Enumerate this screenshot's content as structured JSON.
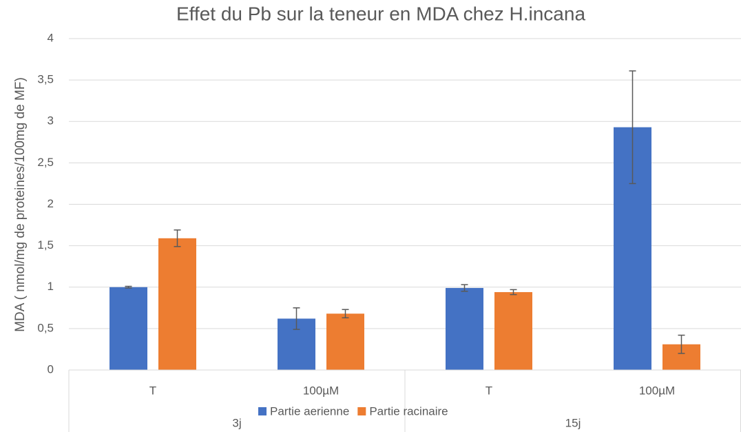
{
  "chart_data": {
    "type": "bar",
    "title": "Effet du Pb sur la teneur en MDA chez H.incana",
    "ylabel": "MDA ( nmol/mg de proteines/100mg de MF)",
    "categories": [
      "T",
      "100µM",
      "T",
      "100µM"
    ],
    "group_labels": [
      "3j",
      "15j"
    ],
    "series": [
      {
        "name": "Partie aerienne",
        "color": "#4472c4",
        "values": [
          1.0,
          0.62,
          0.99,
          2.93
        ],
        "errors": [
          0.01,
          0.13,
          0.04,
          0.68
        ]
      },
      {
        "name": "Partie racinaire",
        "color": "#ed7d31",
        "values": [
          1.59,
          0.68,
          0.94,
          0.31
        ],
        "errors": [
          0.1,
          0.05,
          0.03,
          0.11
        ]
      }
    ],
    "ylim": [
      0,
      4
    ],
    "yticks": [
      0,
      {
        "value": 0.5,
        "label": "0,5"
      },
      1,
      {
        "value": 1.5,
        "label": "1,5"
      },
      2,
      {
        "value": 2.5,
        "label": "2,5"
      },
      3,
      {
        "value": 3.5,
        "label": "3,5"
      },
      4
    ],
    "grid": true,
    "legend": "bottom"
  }
}
